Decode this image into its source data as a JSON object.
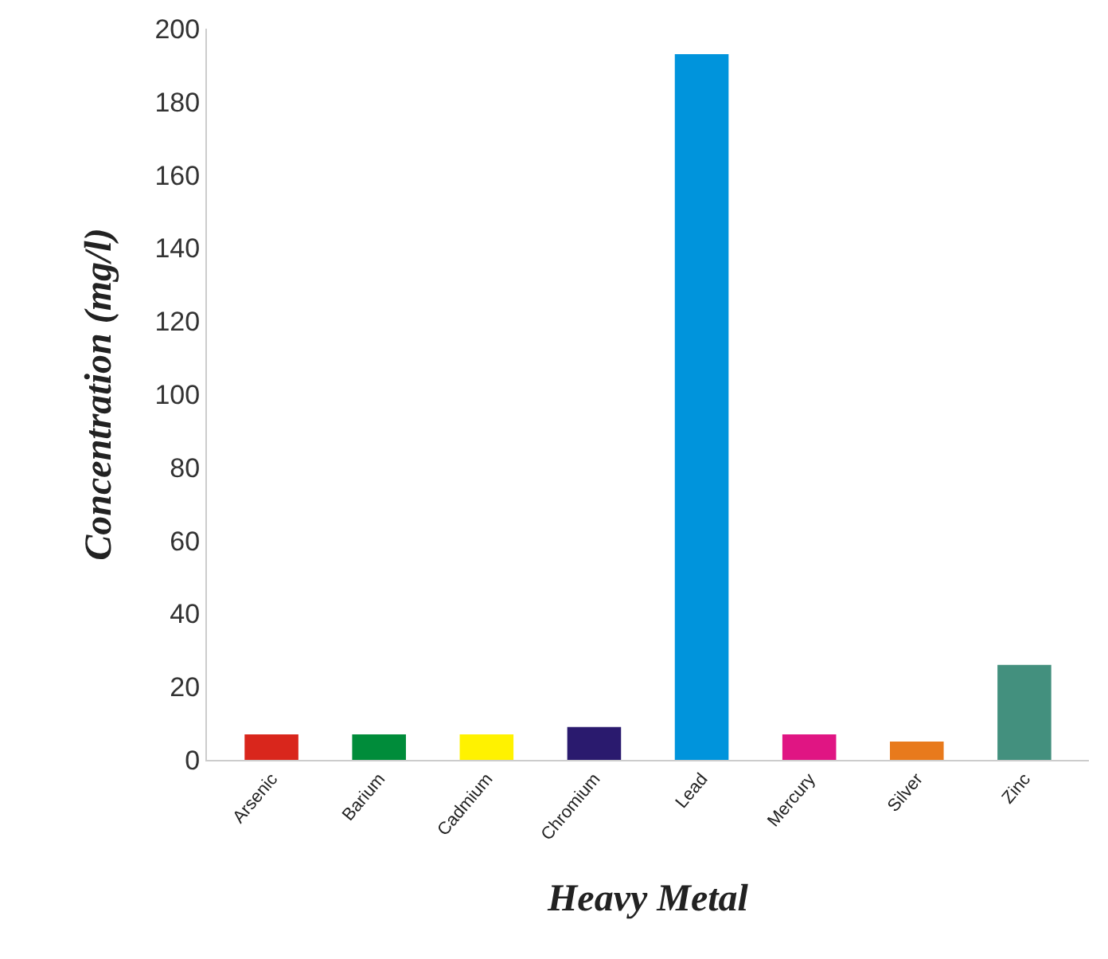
{
  "chart_data": {
    "type": "bar",
    "xlabel": "Heavy Metal",
    "ylabel": "Concentration (mg/l)",
    "categories": [
      "Arsenic",
      "Barium",
      "Cadmium",
      "Chromium",
      "Lead",
      "Mercury",
      "Silver",
      "Zinc"
    ],
    "values": [
      7,
      7,
      7,
      9,
      193,
      7,
      5,
      26
    ],
    "colors": [
      "#d9261c",
      "#008c3a",
      "#fff200",
      "#2a1a6e",
      "#0094dc",
      "#e01583",
      "#e87a1c",
      "#43907e"
    ],
    "ylim": [
      0,
      200
    ],
    "yticks": [
      0,
      20,
      40,
      60,
      80,
      100,
      120,
      140,
      160,
      180,
      200
    ],
    "grid": false
  }
}
